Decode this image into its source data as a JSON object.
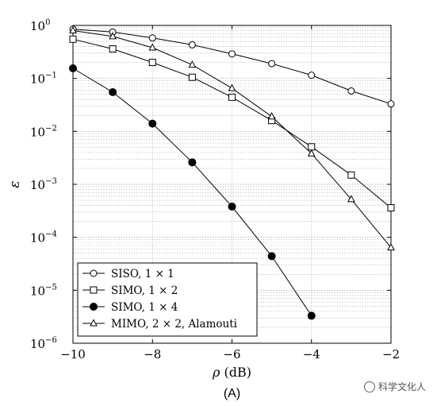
{
  "chart_data": {
    "type": "line",
    "xlabel": "ρ (dB)",
    "ylabel": "ε",
    "caption": "(A)",
    "xlim": [
      -10,
      -2
    ],
    "ylim": [
      1e-06,
      1
    ],
    "yscale": "log",
    "grid": "dotted",
    "legend_position": "bottom-left",
    "xticks": [
      -10,
      -8,
      -6,
      -4,
      -2
    ],
    "xtick_labels": [
      "−10",
      "−8",
      "−6",
      "−4",
      "−2"
    ],
    "yticks": [
      {
        "base": "10",
        "exp": "0"
      },
      {
        "base": "10",
        "exp": "−1"
      },
      {
        "base": "10",
        "exp": "−2"
      },
      {
        "base": "10",
        "exp": "−3"
      },
      {
        "base": "10",
        "exp": "−4"
      },
      {
        "base": "10",
        "exp": "−5"
      },
      {
        "base": "10",
        "exp": "−6"
      }
    ],
    "series": [
      {
        "name": "SISO, 1 × 1",
        "marker": "circle-open",
        "x": [
          -10,
          -9,
          -8,
          -7,
          -6,
          -5,
          -4,
          -3,
          -2
        ],
        "y": [
          0.85,
          0.75,
          0.58,
          0.43,
          0.29,
          0.19,
          0.115,
          0.058,
          0.033
        ]
      },
      {
        "name": "SIMO, 1 × 2",
        "marker": "square-open",
        "x": [
          -10,
          -9,
          -8,
          -7,
          -6,
          -5,
          -4,
          -3,
          -2
        ],
        "y": [
          0.55,
          0.36,
          0.2,
          0.105,
          0.044,
          0.016,
          0.0051,
          0.0015,
          0.00036
        ]
      },
      {
        "name": "SIMO, 1 × 4",
        "marker": "circle-filled",
        "x": [
          -10,
          -9,
          -8,
          -7,
          -6,
          -5,
          -4
        ],
        "y": [
          0.155,
          0.055,
          0.014,
          0.0026,
          0.00038,
          4.4e-05,
          3.3e-06
        ]
      },
      {
        "name": "MIMO, 2 × 2, Alamouti",
        "marker": "triangle-open",
        "x": [
          -10,
          -9,
          -8,
          -7,
          -6,
          -5,
          -4,
          -3,
          -2
        ],
        "y": [
          0.8,
          0.62,
          0.38,
          0.18,
          0.065,
          0.019,
          0.0038,
          0.00052,
          6.4e-05
        ]
      }
    ]
  },
  "watermark": {
    "text": "科学文化人"
  }
}
